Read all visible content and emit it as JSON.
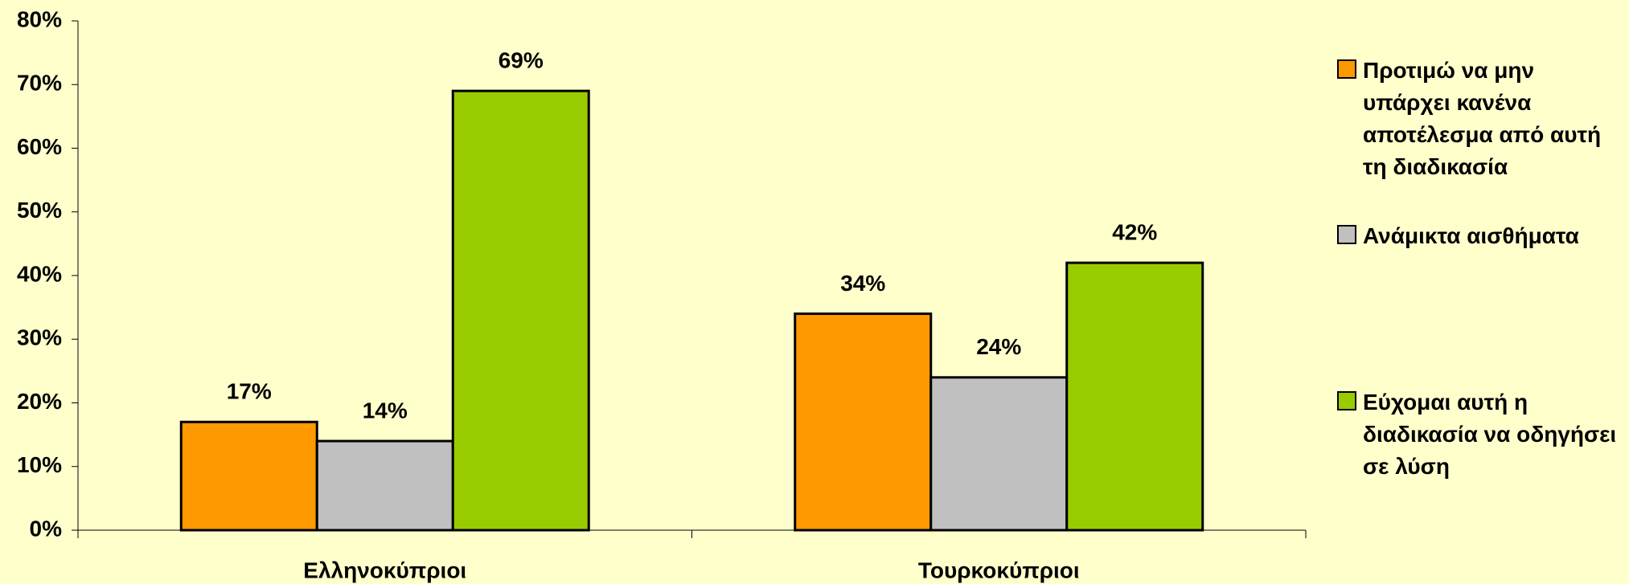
{
  "chart_data": {
    "type": "bar",
    "categories": [
      "Ελληνοκύπριοι",
      "Τουρκοκύπριοι"
    ],
    "series": [
      {
        "name": "Προτιμώ να μην υπάρχει κανένα αποτέλεσμα από αυτή τη διαδικασία",
        "color": "#ff9900",
        "values": [
          17,
          34
        ],
        "value_labels": [
          "17%",
          "34%"
        ]
      },
      {
        "name": "Ανάμικτα αισθήματα",
        "color": "#c0c0c0",
        "values": [
          14,
          24
        ],
        "value_labels": [
          "14%",
          "24%"
        ]
      },
      {
        "name": "Εύχομαι αυτή η διαδικασία να οδηγήσει σε λύση",
        "color": "#99cc00",
        "values": [
          69,
          42
        ],
        "value_labels": [
          "69%",
          "42%"
        ]
      }
    ],
    "ylim": [
      0,
      80
    ],
    "yticks": [
      {
        "value": 0,
        "label": "0%"
      },
      {
        "value": 10,
        "label": "10%"
      },
      {
        "value": 20,
        "label": "20%"
      },
      {
        "value": 30,
        "label": "30%"
      },
      {
        "value": 40,
        "label": "40%"
      },
      {
        "value": 50,
        "label": "50%"
      },
      {
        "value": 60,
        "label": "60%"
      },
      {
        "value": 70,
        "label": "70%"
      },
      {
        "value": 80,
        "label": "80%"
      }
    ],
    "legend": "right"
  }
}
